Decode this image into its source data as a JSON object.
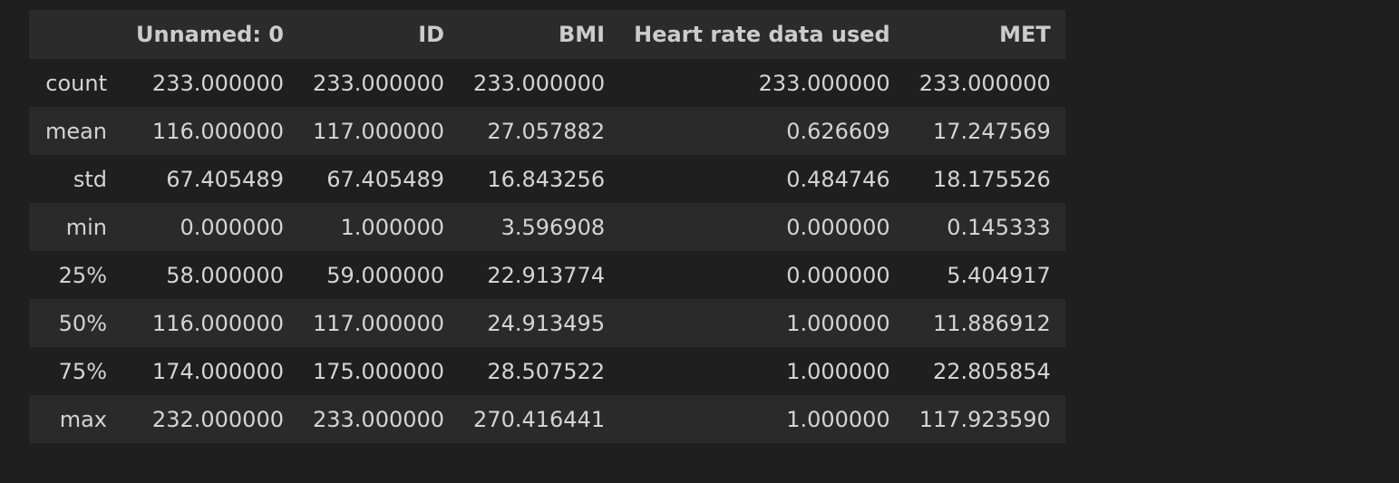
{
  "table": {
    "index_header": "",
    "columns": [
      "Unnamed: 0",
      "ID",
      "BMI",
      "Heart rate data used",
      "MET"
    ],
    "rows": [
      {
        "label": "count",
        "values": [
          "233.000000",
          "233.000000",
          "233.000000",
          "233.000000",
          "233.000000"
        ]
      },
      {
        "label": "mean",
        "values": [
          "116.000000",
          "117.000000",
          "27.057882",
          "0.626609",
          "17.247569"
        ]
      },
      {
        "label": "std",
        "values": [
          "67.405489",
          "67.405489",
          "16.843256",
          "0.484746",
          "18.175526"
        ]
      },
      {
        "label": "min",
        "values": [
          "0.000000",
          "1.000000",
          "3.596908",
          "0.000000",
          "0.145333"
        ]
      },
      {
        "label": "25%",
        "values": [
          "58.000000",
          "59.000000",
          "22.913774",
          "0.000000",
          "5.404917"
        ]
      },
      {
        "label": "50%",
        "values": [
          "116.000000",
          "117.000000",
          "24.913495",
          "1.000000",
          "11.886912"
        ]
      },
      {
        "label": "75%",
        "values": [
          "174.000000",
          "175.000000",
          "28.507522",
          "1.000000",
          "22.805854"
        ]
      },
      {
        "label": "max",
        "values": [
          "232.000000",
          "233.000000",
          "270.416441",
          "1.000000",
          "117.923590"
        ]
      }
    ]
  },
  "colors": {
    "background": "#1f1f1f",
    "header_background": "#2b2b2b",
    "striped_row": "#2a2a2a",
    "text": "#d4d4d4"
  }
}
